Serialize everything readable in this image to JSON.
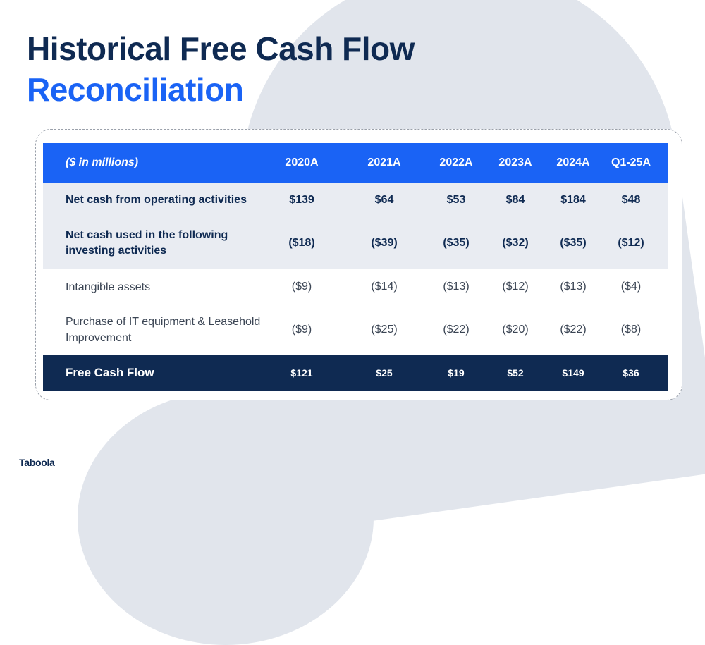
{
  "title": {
    "line1": "Historical Free Cash Flow",
    "line2": "Reconciliation"
  },
  "table": {
    "header": {
      "label": "($ in millions)",
      "columns": [
        "2020A",
        "2021A",
        "2022A",
        "2023A",
        "2024A",
        "Q1-25A"
      ]
    },
    "rows": [
      {
        "label": "Net cash from operating activities",
        "values": [
          "$139",
          "$64",
          "$53",
          "$84",
          "$184",
          "$48"
        ]
      },
      {
        "label": "Net cash used in the following investing activities",
        "values": [
          "($18)",
          "($39)",
          "($35)",
          "($32)",
          "($35)",
          "($12)"
        ]
      },
      {
        "label": "Intangible assets",
        "values": [
          "($9)",
          "($14)",
          "($13)",
          "($12)",
          "($13)",
          "($4)"
        ]
      },
      {
        "label": "Purchase of IT equipment & Leasehold Improvement",
        "values": [
          "($9)",
          "($25)",
          "($22)",
          "($20)",
          "($22)",
          "($8)"
        ]
      }
    ],
    "total": {
      "label": "Free Cash Flow",
      "values": [
        "$121",
        "$25",
        "$19",
        "$52",
        "$149",
        "$36"
      ]
    }
  },
  "logo": "Taboola",
  "colors": {
    "navy": "#0f2a52",
    "blue": "#1a63f5",
    "shade": "#e9ecf2",
    "background_shape": "#e1e5ec"
  }
}
